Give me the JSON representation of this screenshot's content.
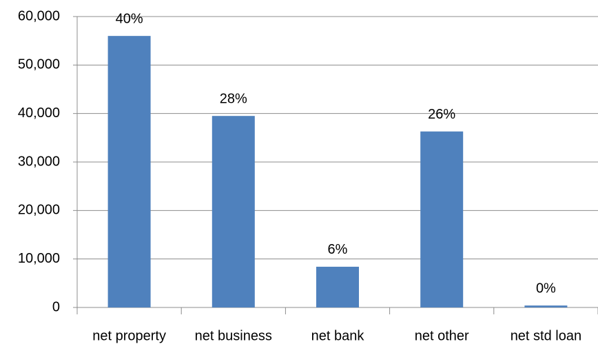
{
  "chart_data": {
    "type": "bar",
    "categories": [
      "net property",
      "net business",
      "net bank",
      "net other",
      "net std loan"
    ],
    "values": [
      56000,
      39500,
      8400,
      36300,
      400
    ],
    "data_labels": [
      "40%",
      "28%",
      "6%",
      "26%",
      "0%"
    ],
    "color": "#4f81bd",
    "ylim": [
      0,
      60000
    ],
    "yticks": [
      0,
      {
        "value": 10000,
        "label": "10,000"
      },
      {
        "value": 20000,
        "label": "20,000"
      },
      {
        "value": 30000,
        "label": "30,000"
      },
      {
        "value": 40000,
        "label": "40,000"
      },
      {
        "value": 50000,
        "label": "50,000"
      },
      {
        "value": 60000,
        "label": "60,000"
      }
    ],
    "grid": true
  }
}
